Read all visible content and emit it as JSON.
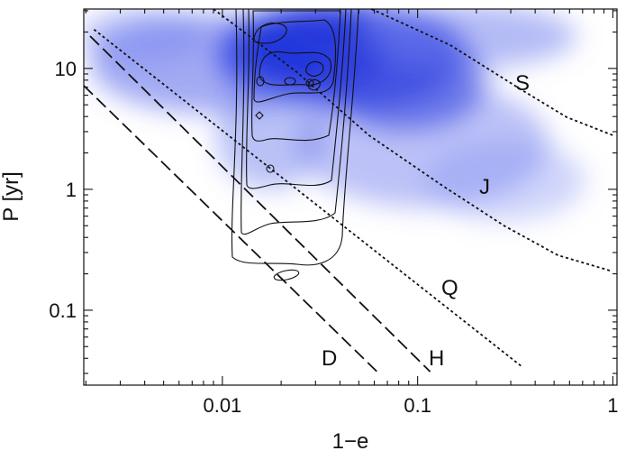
{
  "chart_data": {
    "type": "line",
    "x_label": "1−e",
    "y_label": "P [yr]",
    "xscale": "log",
    "yscale": "log",
    "xlim": [
      0.00195,
      1.05
    ],
    "ylim": [
      0.024,
      31
    ],
    "xticks": [
      0.01,
      0.1,
      1
    ],
    "yticks": [
      0.1,
      1,
      10
    ],
    "xminorticks": [
      0.002,
      0.003,
      0.004,
      0.005,
      0.006,
      0.007,
      0.008,
      0.009,
      0.02,
      0.03,
      0.04,
      0.05,
      0.06,
      0.07,
      0.08,
      0.09,
      0.2,
      0.3,
      0.4,
      0.5,
      0.6,
      0.7,
      0.8,
      0.9
    ],
    "yminorticks": [
      0.03,
      0.04,
      0.05,
      0.06,
      0.07,
      0.08,
      0.09,
      0.2,
      0.3,
      0.4,
      0.5,
      0.6,
      0.7,
      0.8,
      0.9,
      2,
      3,
      4,
      5,
      6,
      7,
      8,
      9,
      20,
      30
    ],
    "series": [
      {
        "name": "S",
        "color": "#111111",
        "style": "dotted",
        "x": [
          0.058,
          0.147,
          0.343,
          0.58,
          1.0
        ],
        "values": [
          31,
          15.6,
          6.6,
          3.95,
          2.8
        ]
      },
      {
        "name": "J",
        "color": "#111111",
        "style": "dotted",
        "x": [
          0.009,
          0.0241,
          0.0563,
          0.132,
          0.277,
          0.523,
          0.99
        ],
        "values": [
          31,
          9.3,
          2.8,
          1.09,
          0.5,
          0.285,
          0.21
        ]
      },
      {
        "name": "Q",
        "color": "#111111",
        "style": "dotted",
        "x": [
          0.0022,
          0.343
        ],
        "values": [
          21,
          0.034
        ]
      },
      {
        "name": "H",
        "color": "#111111",
        "style": "dashed",
        "x": [
          0.0021,
          0.116
        ],
        "values": [
          18.5,
          0.031
        ]
      },
      {
        "name": "D",
        "color": "#111111",
        "style": "dashed",
        "x": [
          0.00195,
          0.064
        ],
        "values": [
          7.2,
          0.0295
        ]
      }
    ]
  }
}
